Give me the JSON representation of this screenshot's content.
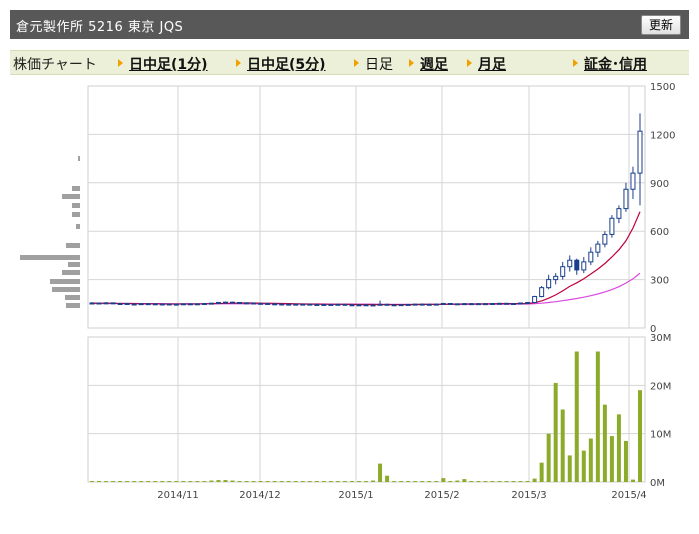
{
  "header": {
    "title": "倉元製作所  5216  東京 JQS",
    "refresh_label": "更新"
  },
  "tabs": {
    "label": "株価チャート",
    "items": [
      {
        "label": "日中足(1分)",
        "link": true
      },
      {
        "label": "日中足(5分)",
        "link": true
      },
      {
        "label": "日足",
        "link": false
      },
      {
        "label": "週足",
        "link": true
      },
      {
        "label": "月足",
        "link": true
      },
      {
        "label": "証金･信用",
        "link": true
      }
    ]
  },
  "colors": {
    "candle": "#1a3f8c",
    "ma_short": "#c0003a",
    "ma_long": "#d94adf",
    "volume": "#8cab2a",
    "vol_profile": "#a0a0a0",
    "grid": "#d6d6d6"
  },
  "chart_data": [
    {
      "type": "line",
      "title": "",
      "y_axis": {
        "side": "right",
        "min": 0,
        "max": 1500,
        "ticks": [
          "0",
          "300",
          "600",
          "900",
          "1200",
          "1500"
        ]
      },
      "x_ticks": [
        "2014/11",
        "2014/12",
        "2015/1",
        "2015/2",
        "2015/3",
        "2015/4"
      ],
      "grid": true,
      "series": [
        {
          "kind": "ohlc",
          "values": [
            [
              155,
              160,
              150,
              155
            ],
            [
              155,
              158,
              150,
              152
            ],
            [
              152,
              160,
              150,
              156
            ],
            [
              156,
              158,
              148,
              150
            ],
            [
              150,
              156,
              146,
              152
            ],
            [
              152,
              155,
              147,
              149
            ],
            [
              149,
              152,
              145,
              148
            ],
            [
              148,
              153,
              146,
              151
            ],
            [
              151,
              154,
              147,
              150
            ],
            [
              150,
              152,
              146,
              147
            ],
            [
              147,
              151,
              144,
              149
            ],
            [
              149,
              152,
              146,
              148
            ],
            [
              148,
              150,
              145,
              147
            ],
            [
              147,
              152,
              145,
              150
            ],
            [
              150,
              153,
              147,
              149
            ],
            [
              149,
              152,
              146,
              150
            ],
            [
              150,
              154,
              147,
              152
            ],
            [
              152,
              156,
              149,
              154
            ],
            [
              154,
              162,
              151,
              158
            ],
            [
              158,
              164,
              155,
              160
            ],
            [
              160,
              163,
              156,
              158
            ],
            [
              158,
              161,
              154,
              156
            ],
            [
              156,
              159,
              152,
              155
            ],
            [
              155,
              158,
              151,
              153
            ],
            [
              153,
              157,
              150,
              152
            ],
            [
              152,
              155,
              148,
              150
            ],
            [
              150,
              153,
              147,
              149
            ],
            [
              149,
              152,
              145,
              147
            ],
            [
              147,
              151,
              144,
              148
            ],
            [
              148,
              151,
              145,
              146
            ],
            [
              146,
              150,
              143,
              148
            ],
            [
              148,
              150,
              144,
              145
            ],
            [
              145,
              148,
              142,
              146
            ],
            [
              146,
              149,
              143,
              144
            ],
            [
              144,
              148,
              141,
              146
            ],
            [
              146,
              150,
              143,
              147
            ],
            [
              147,
              150,
              143,
              144
            ],
            [
              144,
              147,
              140,
              142
            ],
            [
              142,
              146,
              139,
              144
            ],
            [
              144,
              147,
              140,
              141
            ],
            [
              141,
              145,
              138,
              143
            ],
            [
              143,
              170,
              140,
              147
            ],
            [
              147,
              150,
              142,
              143
            ],
            [
              143,
              146,
              140,
              144
            ],
            [
              144,
              148,
              141,
              145
            ],
            [
              145,
              149,
              142,
              146
            ],
            [
              146,
              150,
              143,
              148
            ],
            [
              148,
              151,
              144,
              146
            ],
            [
              146,
              149,
              142,
              147
            ],
            [
              147,
              150,
              144,
              148
            ],
            [
              148,
              156,
              145,
              152
            ],
            [
              152,
              155,
              146,
              148
            ],
            [
              148,
              152,
              145,
              150
            ],
            [
              150,
              154,
              147,
              151
            ],
            [
              151,
              154,
              147,
              149
            ],
            [
              149,
              153,
              146,
              151
            ],
            [
              151,
              154,
              148,
              150
            ],
            [
              150,
              153,
              147,
              152
            ],
            [
              152,
              156,
              149,
              153
            ],
            [
              153,
              156,
              149,
              151
            ],
            [
              151,
              154,
              148,
              152
            ],
            [
              152,
              156,
              150,
              155
            ],
            [
              155,
              160,
              152,
              158
            ],
            [
              158,
              200,
              156,
              195
            ],
            [
              195,
              260,
              190,
              250
            ],
            [
              250,
              330,
              240,
              300
            ],
            [
              300,
              340,
              270,
              320
            ],
            [
              320,
              410,
              300,
              380
            ],
            [
              380,
              450,
              350,
              420
            ],
            [
              420,
              430,
              330,
              360
            ],
            [
              360,
              440,
              340,
              410
            ],
            [
              410,
              500,
              390,
              470
            ],
            [
              470,
              540,
              440,
              520
            ],
            [
              520,
              600,
              500,
              580
            ],
            [
              580,
              700,
              560,
              680
            ],
            [
              680,
              760,
              650,
              740
            ],
            [
              740,
              900,
              720,
              860
            ],
            [
              860,
              1000,
              800,
              960
            ],
            [
              960,
              1330,
              760,
              1220
            ]
          ]
        },
        {
          "name": "",
          "kind": "ma_short",
          "values": [
            155,
            154,
            154,
            153,
            152,
            152,
            151,
            150,
            150,
            150,
            149,
            149,
            149,
            149,
            149,
            149,
            150,
            151,
            152,
            153,
            154,
            155,
            155,
            155,
            154,
            154,
            153,
            152,
            151,
            150,
            149,
            148,
            148,
            147,
            147,
            147,
            146,
            146,
            145,
            145,
            145,
            145,
            145,
            145,
            145,
            145,
            145,
            146,
            146,
            146,
            147,
            148,
            148,
            149,
            149,
            149,
            150,
            150,
            151,
            151,
            151,
            151,
            152,
            157,
            168,
            185,
            205,
            230,
            258,
            280,
            305,
            335,
            365,
            400,
            440,
            485,
            540,
            620,
            720
          ]
        },
        {
          "name": "",
          "kind": "ma_long",
          "values": [
            152,
            152,
            152,
            152,
            152,
            152,
            152,
            151,
            151,
            151,
            151,
            150,
            150,
            150,
            150,
            150,
            150,
            150,
            150,
            150,
            150,
            150,
            150,
            150,
            150,
            150,
            150,
            149,
            149,
            149,
            149,
            149,
            149,
            149,
            148,
            148,
            148,
            148,
            148,
            148,
            148,
            147,
            147,
            147,
            147,
            147,
            147,
            147,
            147,
            147,
            147,
            147,
            147,
            147,
            148,
            148,
            148,
            148,
            148,
            148,
            148,
            149,
            149,
            151,
            154,
            158,
            163,
            169,
            176,
            183,
            191,
            200,
            211,
            224,
            238,
            256,
            278,
            305,
            340
          ]
        }
      ]
    },
    {
      "type": "bar",
      "title": "",
      "y_axis": {
        "side": "right",
        "min": 0,
        "max": 30000000,
        "ticks": [
          "0M",
          "10M",
          "20M",
          "30M"
        ]
      },
      "values": [
        0.2,
        0.2,
        0.2,
        0.2,
        0.2,
        0.2,
        0.2,
        0.2,
        0.2,
        0.2,
        0.2,
        0.2,
        0.2,
        0.2,
        0.2,
        0.2,
        0.2,
        0.3,
        0.4,
        0.4,
        0.3,
        0.2,
        0.2,
        0.2,
        0.2,
        0.2,
        0.2,
        0.2,
        0.2,
        0.2,
        0.2,
        0.2,
        0.2,
        0.2,
        0.2,
        0.2,
        0.2,
        0.2,
        0.2,
        0.2,
        0.3,
        3.8,
        1.3,
        0.2,
        0.2,
        0.2,
        0.2,
        0.2,
        0.2,
        0.2,
        0.8,
        0.2,
        0.3,
        0.6,
        0.2,
        0.2,
        0.2,
        0.2,
        0.2,
        0.2,
        0.2,
        0.2,
        0.2,
        0.7,
        4,
        10,
        20.5,
        15,
        5.5,
        27,
        6.5,
        9,
        27,
        16,
        9.5,
        14,
        8.5,
        0.5,
        19
      ]
    }
  ]
}
